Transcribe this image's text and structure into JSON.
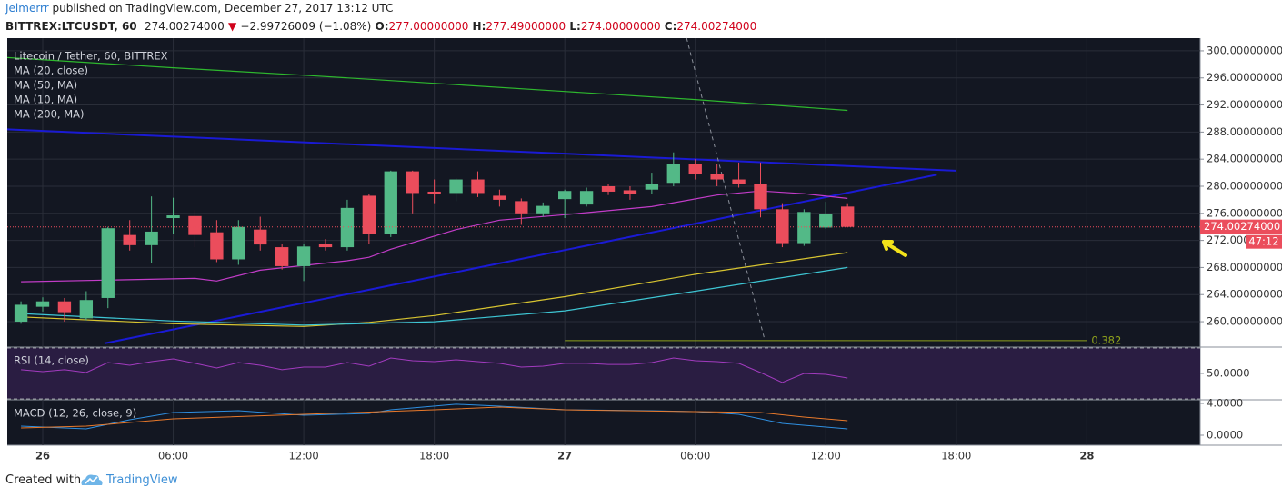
{
  "header": {
    "author": "Jelmerrr",
    "published": "published on TradingView.com, December 27, 2017 13:12 UTC",
    "symbol": "BITTREX:LTCUSDT, 60",
    "price": "274.00274000",
    "arrow": "▼",
    "change": "−2.99726009 (−1.08%)",
    "o_label": "O:",
    "o": "277.00000000",
    "h_label": "H:",
    "h": "277.49000000",
    "l_label": "L:",
    "l": "274.00000000",
    "c_label": "C:",
    "c": "274.00274000"
  },
  "chart_data": [
    {
      "type": "candlestick",
      "title": "Litecoin / Tether, 60, BITTREX",
      "up_color": "#53b987",
      "down_color": "#eb4d5c",
      "x": [
        -1,
        0,
        1,
        2,
        3,
        4,
        5,
        6,
        7,
        8,
        9,
        10,
        11,
        12,
        13,
        14,
        15,
        16,
        17,
        18,
        19,
        20,
        21,
        22,
        23,
        24,
        25,
        26,
        27,
        28,
        29,
        30,
        31,
        32,
        33,
        34,
        35,
        36,
        37
      ],
      "open": [
        260.0,
        262.2,
        263.0,
        260.5,
        263.5,
        272.8,
        271.3,
        275.3,
        275.6,
        273.2,
        269.2,
        273.6,
        271.0,
        268.2,
        271.5,
        271.0,
        278.6,
        273.0,
        282.2,
        279.2,
        279.0,
        281.0,
        278.6,
        277.8,
        276.0,
        278.1,
        277.3,
        280.0,
        279.4,
        279.5,
        280.5,
        283.3,
        281.8,
        281.0,
        280.3,
        276.6,
        271.6,
        273.9,
        277.0
      ],
      "high": [
        263.0,
        263.6,
        263.5,
        264.5,
        274.0,
        275.0,
        278.5,
        278.3,
        276.5,
        275.0,
        275.0,
        275.5,
        271.5,
        271.5,
        272.2,
        278.0,
        278.9,
        282.3,
        282.3,
        281.0,
        281.2,
        282.2,
        279.5,
        278.2,
        277.6,
        279.5,
        279.8,
        280.3,
        280.0,
        282.0,
        285.0,
        284.0,
        283.3,
        283.5,
        283.5,
        277.5,
        276.6,
        277.7,
        277.49
      ],
      "low": [
        259.7,
        261.5,
        260.0,
        260.2,
        262.0,
        270.5,
        268.6,
        273.0,
        271.0,
        268.8,
        268.4,
        270.5,
        267.7,
        266.0,
        270.5,
        270.5,
        271.5,
        272.5,
        276.0,
        277.5,
        277.8,
        278.4,
        277.0,
        274.3,
        275.5,
        275.3,
        277.0,
        278.7,
        278.0,
        278.8,
        280.0,
        281.0,
        280.0,
        279.8,
        275.4,
        271.0,
        271.2,
        273.7,
        274.0
      ],
      "close": [
        262.5,
        263.0,
        261.4,
        263.2,
        273.8,
        271.3,
        273.3,
        275.7,
        272.8,
        269.2,
        274.0,
        271.4,
        268.2,
        271.1,
        271.0,
        276.8,
        273.0,
        282.2,
        279.0,
        278.8,
        281.0,
        279.0,
        278.0,
        276.0,
        277.1,
        279.3,
        279.3,
        279.2,
        278.9,
        280.3,
        283.3,
        281.8,
        281.0,
        280.3,
        276.6,
        271.6,
        276.2,
        275.9,
        274.00274
      ],
      "series": [
        {
          "name": "MA (20, close)",
          "color": "#c23cc8",
          "x": [
            -1,
            7,
            8,
            10,
            14,
            15,
            16,
            19,
            21,
            24,
            28,
            31,
            33,
            35,
            37
          ],
          "values": [
            265.9,
            266.4,
            266.0,
            267.6,
            269.0,
            269.5,
            270.7,
            273.6,
            275.0,
            275.8,
            277.0,
            278.7,
            279.3,
            278.9,
            278.2
          ]
        },
        {
          "name": "MA (50, MA)",
          "color": "#d8c531",
          "x": [
            -1,
            6,
            12,
            15,
            18,
            24,
            30,
            37
          ],
          "values": [
            260.7,
            259.7,
            259.3,
            259.9,
            260.9,
            263.7,
            267.0,
            270.2
          ]
        },
        {
          "name": "MA (10, MA)",
          "color": "#3ec6d4",
          "x": [
            -1,
            6,
            12,
            18,
            24,
            30,
            37
          ],
          "values": [
            261.2,
            260.1,
            259.5,
            260.0,
            261.6,
            264.5,
            268.0
          ]
        },
        {
          "name": "MA (200, MA)",
          "color": "#2eb82e",
          "x": [
            -1.63,
            6,
            12,
            18,
            24,
            30,
            37
          ],
          "values": [
            299.0,
            297.5,
            296.4,
            295.2,
            294.0,
            292.8,
            291.2
          ]
        }
      ],
      "trendlines": [
        {
          "color": "#1a1ad4",
          "x": [
            -1.63,
            41.97
          ],
          "values": [
            288.4,
            282.3
          ]
        },
        {
          "color": "#1a1ad4",
          "x": [
            2.84,
            41.1
          ],
          "values": [
            256.8,
            281.7
          ]
        },
        {
          "color": "#8a8f99",
          "dashed": true,
          "x": [
            29.6,
            33.2
          ],
          "values": [
            301.87,
            257.2
          ]
        }
      ],
      "fib": {
        "label": "0.382",
        "value": 257.2,
        "x": [
          24,
          48
        ],
        "color": "#8fa21c"
      },
      "last_price": {
        "value": 274.00274,
        "label": "274.00274000"
      },
      "countdown": "47:12",
      "xlim": [
        -1.63,
        53.21
      ],
      "ylim": [
        256.25,
        301.87
      ],
      "xticks": [
        {
          "value": 0,
          "label": "26"
        },
        {
          "value": 6,
          "label": "06:00"
        },
        {
          "value": 12,
          "label": "12:00"
        },
        {
          "value": 18,
          "label": "18:00"
        },
        {
          "value": 24,
          "label": "27"
        },
        {
          "value": 30,
          "label": "06:00"
        },
        {
          "value": 36,
          "label": "12:00"
        },
        {
          "value": 42,
          "label": "18:00"
        },
        {
          "value": 48,
          "label": "28"
        }
      ],
      "yticks": [
        {
          "value": 300,
          "label": "300.00000000"
        },
        {
          "value": 296,
          "label": "296.00000000"
        },
        {
          "value": 292,
          "label": "292.00000000"
        },
        {
          "value": 288,
          "label": "288.00000000"
        },
        {
          "value": 284,
          "label": "284.00000000"
        },
        {
          "value": 280,
          "label": "280.00000000"
        },
        {
          "value": 276,
          "label": "276.00000000"
        },
        {
          "value": 272,
          "label": "272.00000000"
        },
        {
          "value": 268,
          "label": "268.00000000"
        },
        {
          "value": 264,
          "label": "264.00000000"
        },
        {
          "value": 260,
          "label": "260.00000000"
        }
      ],
      "grid": true
    },
    {
      "type": "line",
      "title": "RSI (14, close)",
      "bands": [
        70,
        30
      ],
      "series": [
        {
          "color": "#a23bbf",
          "x": [
            -1,
            0,
            1,
            2,
            3,
            4,
            5,
            6,
            7,
            8,
            9,
            10,
            11,
            12,
            13,
            14,
            15,
            16,
            17,
            18,
            19,
            20,
            21,
            22,
            23,
            24,
            25,
            26,
            27,
            28,
            29,
            30,
            31,
            32,
            33,
            34,
            35,
            36,
            37
          ],
          "values": [
            52.9,
            51.4,
            52.9,
            50.7,
            58.6,
            56.4,
            59.3,
            61.4,
            57.9,
            54.3,
            58.6,
            56.4,
            52.9,
            55.0,
            55.0,
            58.6,
            55.7,
            62.1,
            60.0,
            59.3,
            60.7,
            59.3,
            57.9,
            55.0,
            55.7,
            57.9,
            57.9,
            57.1,
            57.1,
            58.6,
            62.1,
            60.0,
            59.3,
            57.9,
            50.7,
            42.9,
            50.0,
            49.3,
            46.4
          ]
        }
      ],
      "ylim": [
        29.3,
        70.7
      ],
      "yticks": [
        {
          "value": 50,
          "label": "50.0000"
        }
      ]
    },
    {
      "type": "line",
      "title": "MACD (12, 26, close, 9)",
      "series": [
        {
          "color": "#2f8fe0",
          "x": [
            -1,
            2,
            4,
            6,
            9,
            12,
            15,
            16,
            19,
            21,
            24,
            28,
            30,
            32,
            34,
            37
          ],
          "values": [
            1.14,
            0.8,
            1.94,
            2.86,
            3.09,
            2.51,
            2.74,
            3.2,
            3.9,
            3.66,
            3.2,
            3.09,
            2.97,
            2.63,
            1.49,
            0.8
          ]
        },
        {
          "color": "#e8792b",
          "x": [
            -1,
            2,
            6,
            12,
            18,
            21,
            24,
            30,
            33,
            35,
            37
          ],
          "values": [
            0.91,
            1.14,
            2.06,
            2.63,
            3.2,
            3.54,
            3.2,
            2.97,
            2.86,
            2.29,
            1.83
          ]
        }
      ],
      "ylim": [
        -1.26,
        4.46
      ],
      "yticks": [
        {
          "value": 4,
          "label": "4.0000"
        },
        {
          "value": 0,
          "label": "0.0000"
        }
      ]
    }
  ],
  "footer": {
    "created": "Created with",
    "brand": "TradingView"
  }
}
